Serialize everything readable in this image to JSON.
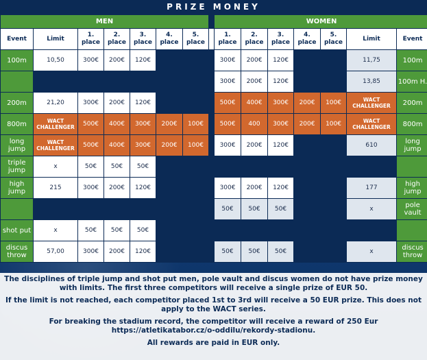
{
  "title": "PRIZE MONEY",
  "sections": {
    "men": "MEN",
    "women": "WOMEN"
  },
  "headers": {
    "event": "Event",
    "limit": "Limit",
    "p1": "1. place",
    "p2": "2. place",
    "p3": "3. place",
    "p4": "4. place",
    "p5": "5. place"
  },
  "rows": {
    "r100": {
      "men_event": "100m",
      "men_limit": "10,50",
      "men_p1": "300€",
      "men_p2": "200€",
      "men_p3": "120€",
      "w_p1": "300€",
      "w_p2": "200€",
      "w_p3": "120€",
      "w_limit": "11,75",
      "w_event": "100m"
    },
    "r100h": {
      "w_p1": "300€",
      "w_p2": "200€",
      "w_p3": "120€",
      "w_limit": "13,85",
      "w_event": "100m H."
    },
    "r200": {
      "men_event": "200m",
      "men_limit": "21,20",
      "men_p1": "300€",
      "men_p2": "200€",
      "men_p3": "120€",
      "w_p1": "500€",
      "w_p2": "400€",
      "w_p3": "300€",
      "w_p4": "200€",
      "w_p5": "100€",
      "w_limit": "WACT CHALLENGER",
      "w_event": "200m"
    },
    "r800": {
      "men_event": "800m",
      "men_limit": "WACT CHALLENGER",
      "men_p1": "500€",
      "men_p2": "400€",
      "men_p3": "300€",
      "men_p4": "200€",
      "men_p5": "100€",
      "w_p1": "500€",
      "w_p2": "400",
      "w_p3": "300€",
      "w_p4": "200€",
      "w_p5": "100€",
      "w_limit": "WACT CHALLENGER",
      "w_event": "800m"
    },
    "rlj": {
      "men_event": "long jump",
      "men_limit": "WACT CHALLENGER",
      "men_p1": "500€",
      "men_p2": "400€",
      "men_p3": "300€",
      "men_p4": "200€",
      "men_p5": "100€",
      "w_p1": "300€",
      "w_p2": "200€",
      "w_p3": "120€",
      "w_limit": "610",
      "w_event": "long jump"
    },
    "rtj": {
      "men_event": "triple jump",
      "men_limit": "x",
      "men_p1": "50€",
      "men_p2": "50€",
      "men_p3": "50€"
    },
    "rhj": {
      "men_event": "high jump",
      "men_limit": "215",
      "men_p1": "300€",
      "men_p2": "200€",
      "men_p3": "120€",
      "w_p1": "300€",
      "w_p2": "200€",
      "w_p3": "120€",
      "w_limit": "177",
      "w_event": "high jump"
    },
    "rpv": {
      "w_p1": "50€",
      "w_p2": "50€",
      "w_p3": "50€",
      "w_limit": "x",
      "w_event": "pole vault"
    },
    "rsp": {
      "men_event": "shot put",
      "men_limit": "x",
      "men_p1": "50€",
      "men_p2": "50€",
      "men_p3": "50€"
    },
    "rdt": {
      "men_event": "discus throw",
      "men_limit": "57,00",
      "men_p1": "300€",
      "men_p2": "200€",
      "men_p3": "120€",
      "w_p1": "50€",
      "w_p2": "50€",
      "w_p3": "50€",
      "w_limit": "x",
      "w_event": "discus throw"
    }
  },
  "notes": [
    "The disciplines of triple jump and shot put men, pole vault and discus women do not have prize money with limits. The first three competitors will receive a single prize of EUR 50.",
    "If the limit is not reached, each competitor placed 1st to 3rd will receive a 50 EUR prize. This does not apply to the WACT series.",
    "For breaking the stadium record, the competitor will receive a reward of 250 Eur https://atletikatabor.cz/o-oddilu/rekordy-stadionu.",
    "All rewards are paid in EUR only."
  ],
  "colors": {
    "navy": "#0b2a55",
    "green": "#4e9a3a",
    "orange": "#d2682e",
    "grey": "#dfe6ee"
  }
}
